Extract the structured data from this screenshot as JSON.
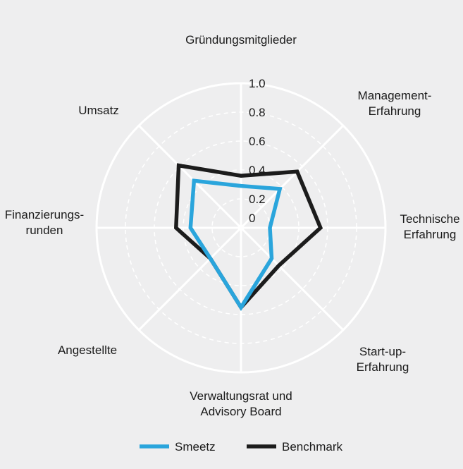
{
  "chart_data": {
    "type": "radar",
    "axes": [
      [
        "Gründungsmitglieder"
      ],
      [
        "Management-",
        "Erfahrung"
      ],
      [
        "Technische",
        "Erfahrung"
      ],
      [
        "Start-up-",
        "Erfahrung"
      ],
      [
        "Verwaltungsrat und",
        "Advisory Board"
      ],
      [
        "Angestellte"
      ],
      [
        "Finanzierungs-",
        "runden"
      ],
      [
        "Umsatz"
      ]
    ],
    "ticks": [
      "0",
      "0.2",
      "0.4",
      "0.6",
      "0.8",
      "1.0"
    ],
    "rlim": [
      0,
      1
    ],
    "series": [
      {
        "name": "Smeetz",
        "color": "#2aa5dc",
        "values": [
          0.29,
          0.38,
          0.2,
          0.3,
          0.55,
          0.3,
          0.35,
          0.46
        ]
      },
      {
        "name": "Benchmark",
        "color": "#1c1c1c",
        "values": [
          0.36,
          0.55,
          0.55,
          0.37,
          0.55,
          0.3,
          0.45,
          0.61
        ]
      }
    ],
    "legend_position": "bottom",
    "grid": true,
    "background": "#eeeeef",
    "grid_color": "#ffffff"
  }
}
